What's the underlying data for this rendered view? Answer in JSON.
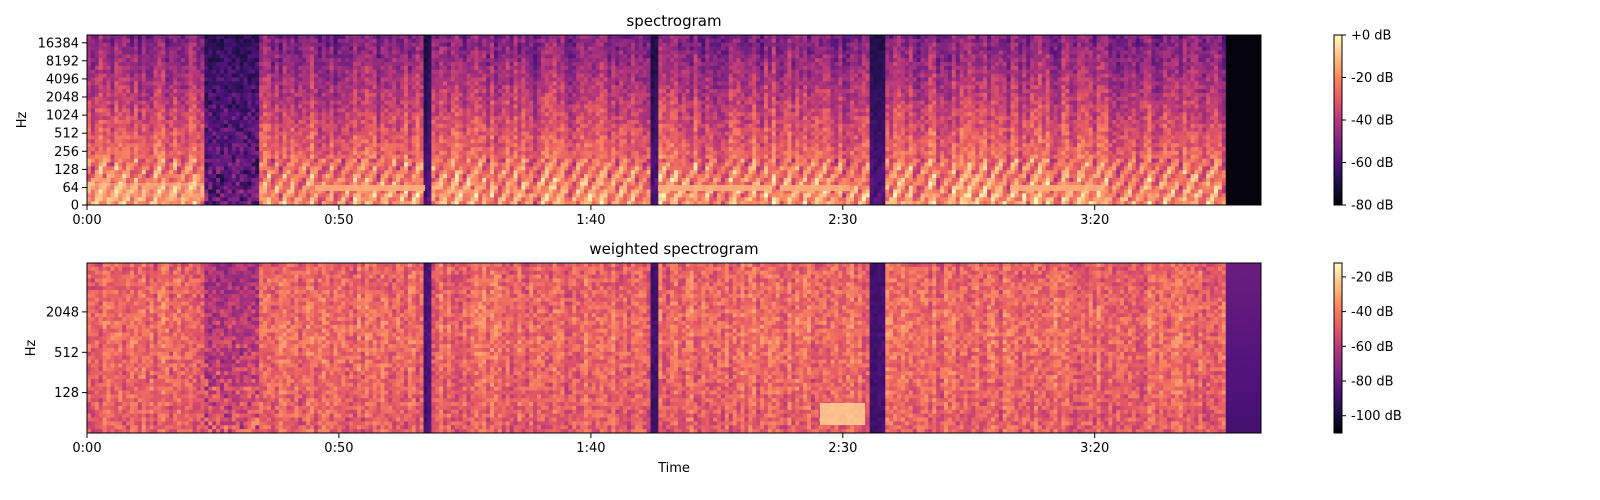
{
  "chart_data": [
    {
      "type": "heatmap",
      "title": "spectrogram",
      "xlabel": "",
      "ylabel": "Hz",
      "y_scale": "log",
      "y_tick_labels": [
        "0",
        "64",
        "128",
        "256",
        "512",
        "1024",
        "2048",
        "4096",
        "8192",
        "16384"
      ],
      "y_ticks": [
        0,
        64,
        128,
        256,
        512,
        1024,
        2048,
        4096,
        8192,
        16384
      ],
      "y_max": 22050,
      "x_tick_labels": [
        "0:00",
        "0:50",
        "1:40",
        "2:30",
        "3:20"
      ],
      "x_ticks_sec": [
        0,
        50,
        100,
        150,
        200
      ],
      "xlim_sec": [
        0,
        233
      ],
      "colormap": "magma",
      "colorbar": {
        "tick_labels": [
          "+0 dB",
          "-20 dB",
          "-40 dB",
          "-60 dB",
          "-80 dB"
        ],
        "ticks": [
          0,
          -20,
          -40,
          -60,
          -80
        ],
        "range": [
          -80,
          0
        ]
      }
    },
    {
      "type": "heatmap",
      "title": "weighted spectrogram",
      "xlabel": "Time",
      "ylabel": "Hz",
      "y_scale": "log",
      "y_tick_labels": [
        "128",
        "512",
        "2048"
      ],
      "y_ticks": [
        128,
        512,
        2048
      ],
      "y_range": [
        32,
        11000
      ],
      "x_tick_labels": [
        "0:00",
        "0:50",
        "1:40",
        "2:30",
        "3:20"
      ],
      "x_ticks_sec": [
        0,
        50,
        100,
        150,
        200
      ],
      "xlim_sec": [
        0,
        233
      ],
      "colormap": "magma",
      "colorbar": {
        "tick_labels": [
          "-20 dB",
          "-40 dB",
          "-60 dB",
          "-80 dB",
          "-100 dB"
        ],
        "ticks": [
          -20,
          -40,
          -60,
          -80,
          -100
        ],
        "range": [
          -110,
          -12
        ]
      }
    }
  ],
  "colors": {
    "magma_stops": [
      "#000004",
      "#1c1044",
      "#4f127b",
      "#812581",
      "#b5367a",
      "#e55964",
      "#fb8761",
      "#fec287",
      "#fcfdbf"
    ]
  }
}
